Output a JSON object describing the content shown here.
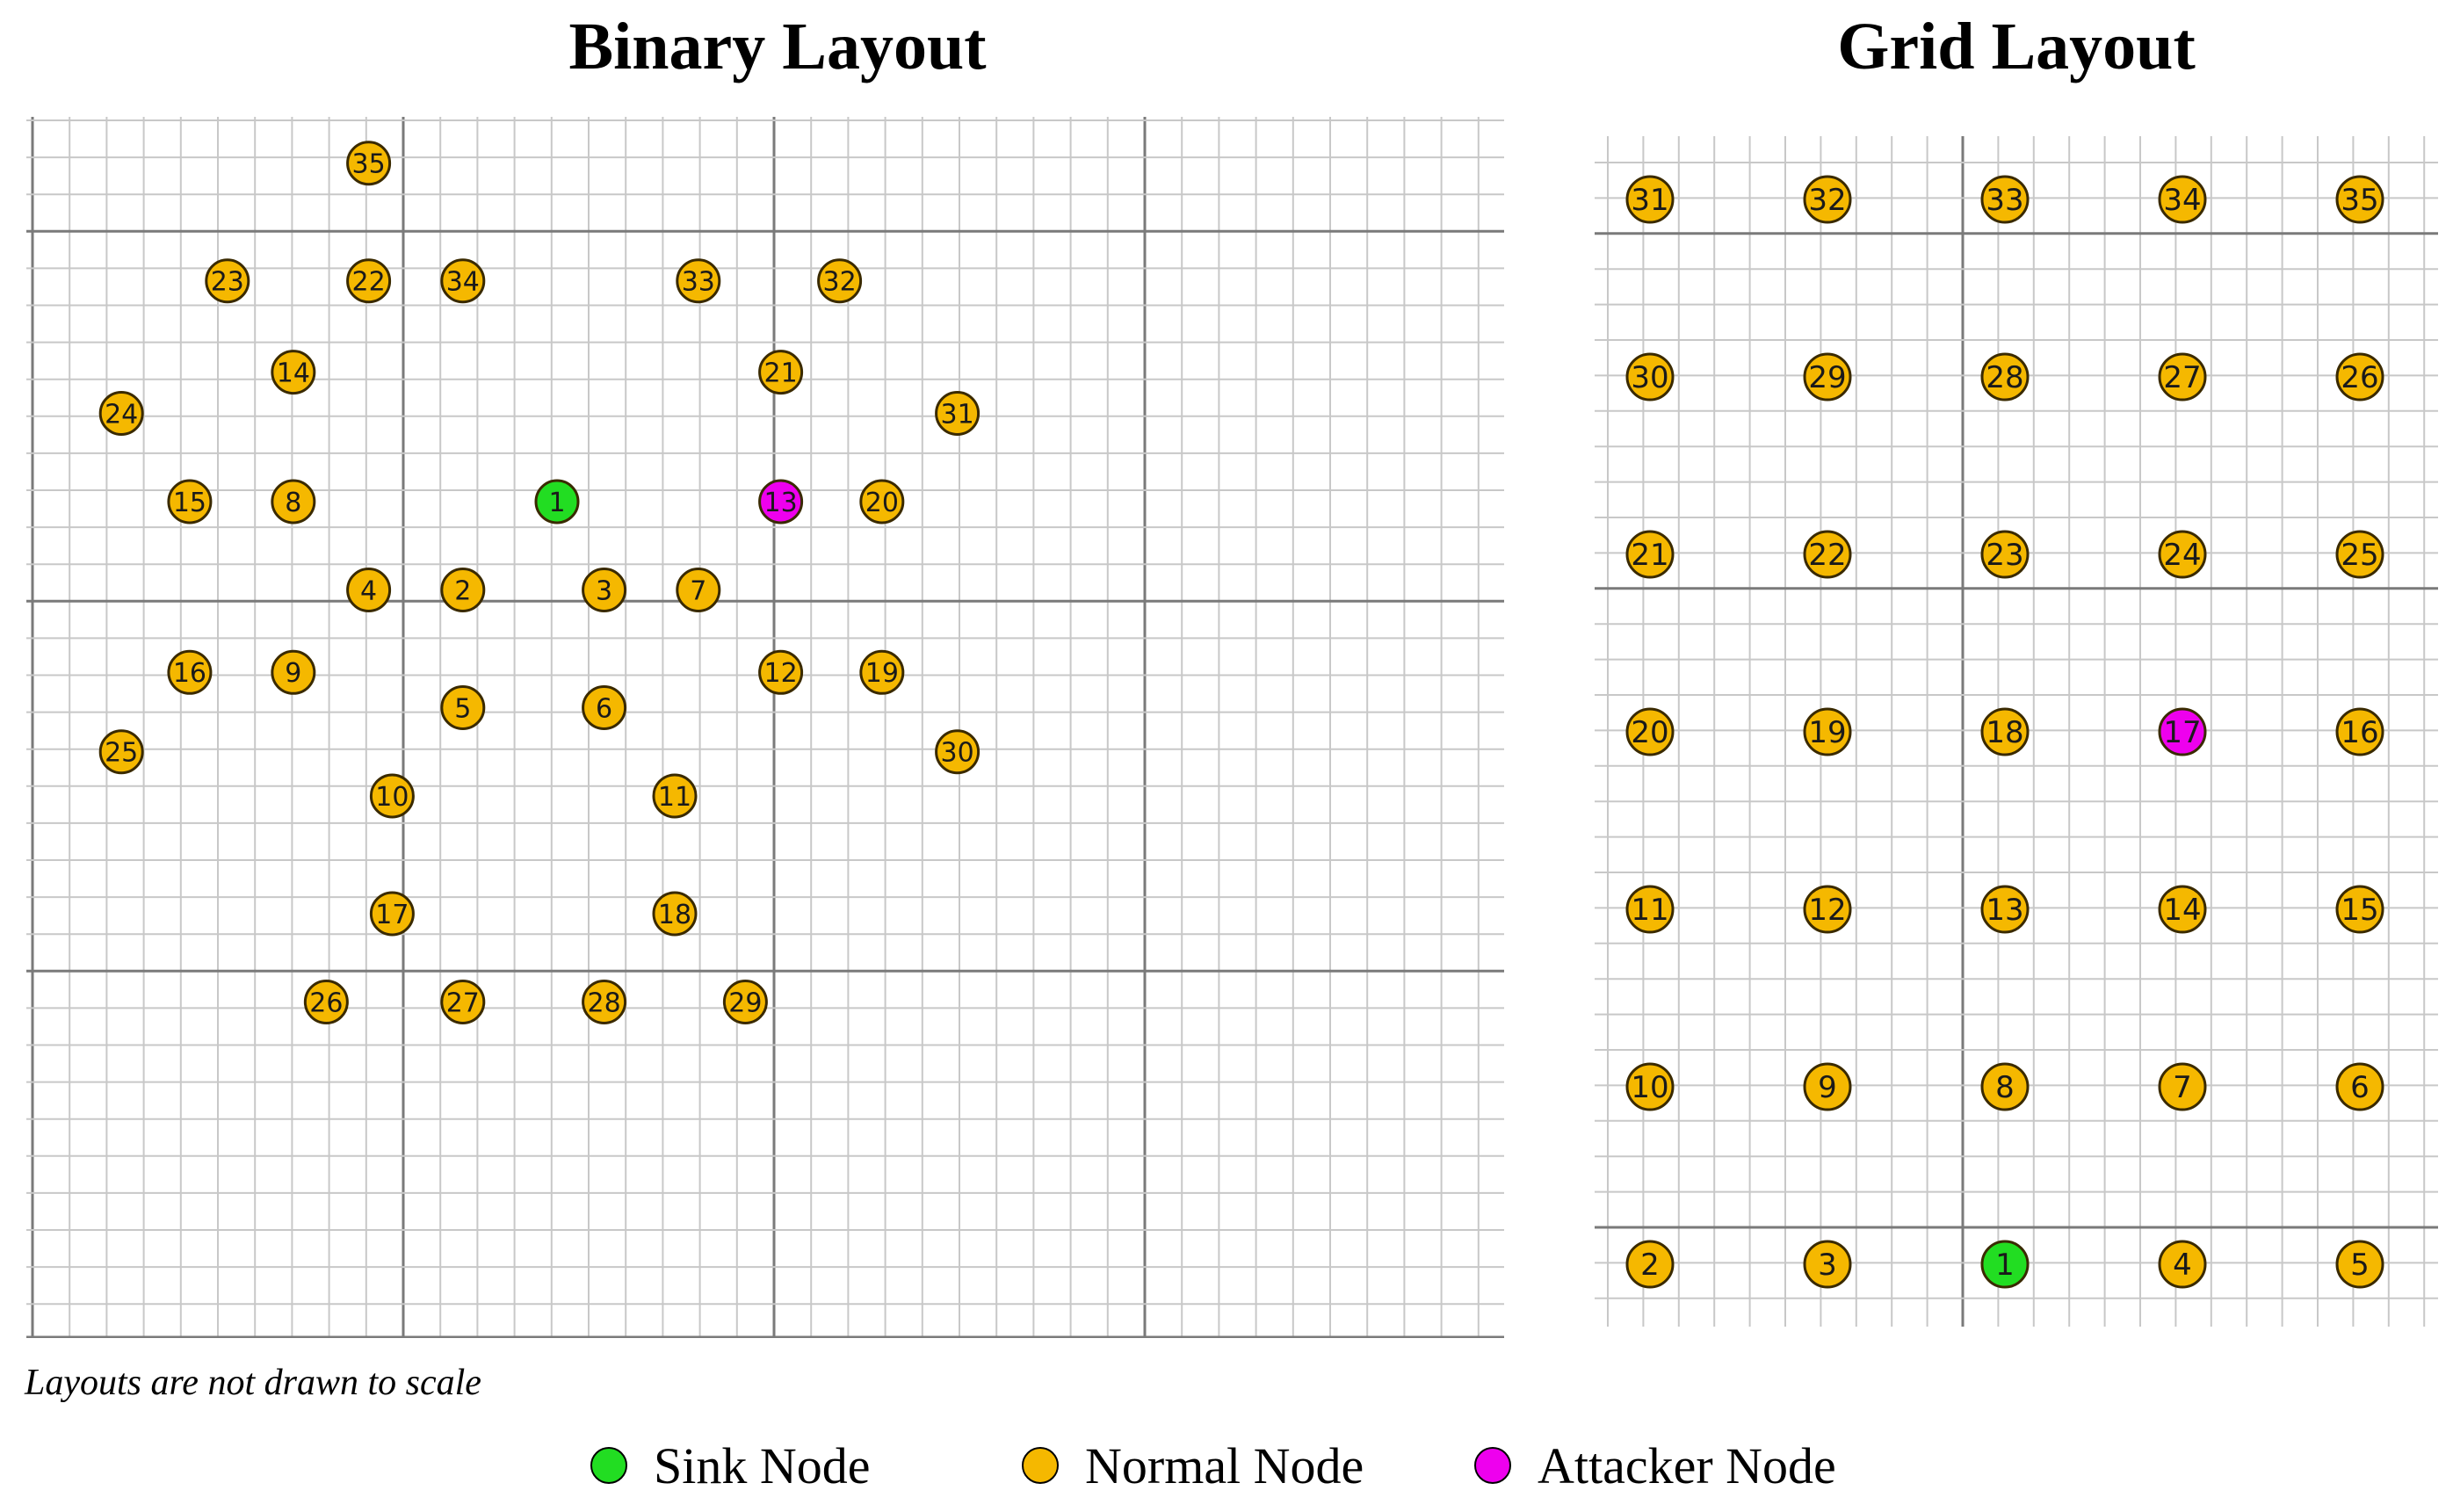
{
  "titles": {
    "binary": "Binary Layout",
    "grid": "Grid Layout"
  },
  "note": "Layouts are not drawn to scale",
  "colors": {
    "sink": "#22dd22",
    "normal": "#f5b800",
    "attacker": "#ee00ee",
    "minor_grid": "#c8c8c8",
    "major_grid": "#7a7a7a",
    "node_border": "#3a2a00"
  },
  "legend": [
    {
      "label": "Sink Node",
      "role": "sink"
    },
    {
      "label": "Normal Node",
      "role": "normal"
    },
    {
      "label": "Attacker Node",
      "role": "attacker"
    }
  ],
  "binary_layout": {
    "nodes": [
      {
        "id": "1",
        "col": 20,
        "row": 12,
        "role": "sink"
      },
      {
        "id": "2",
        "col": 16,
        "row": 15
      },
      {
        "id": "3",
        "col": 22,
        "row": 15
      },
      {
        "id": "4",
        "col": 12,
        "row": 15
      },
      {
        "id": "5",
        "col": 16,
        "row": 19
      },
      {
        "id": "6",
        "col": 22,
        "row": 19
      },
      {
        "id": "7",
        "col": 26,
        "row": 15
      },
      {
        "id": "8",
        "col": 8.8,
        "row": 12
      },
      {
        "id": "9",
        "col": 8.8,
        "row": 17.8
      },
      {
        "id": "10",
        "col": 13,
        "row": 22
      },
      {
        "id": "11",
        "col": 25,
        "row": 22
      },
      {
        "id": "12",
        "col": 29.5,
        "row": 17.8
      },
      {
        "id": "13",
        "col": 29.5,
        "row": 12,
        "role": "attacker"
      },
      {
        "id": "14",
        "col": 8.8,
        "row": 7.6
      },
      {
        "id": "15",
        "col": 4.4,
        "row": 12
      },
      {
        "id": "16",
        "col": 4.4,
        "row": 17.8
      },
      {
        "id": "17",
        "col": 13,
        "row": 26
      },
      {
        "id": "18",
        "col": 25,
        "row": 26
      },
      {
        "id": "19",
        "col": 33.8,
        "row": 17.8
      },
      {
        "id": "20",
        "col": 33.8,
        "row": 12
      },
      {
        "id": "21",
        "col": 29.5,
        "row": 7.6
      },
      {
        "id": "22",
        "col": 12,
        "row": 4.5
      },
      {
        "id": "23",
        "col": 6,
        "row": 4.5
      },
      {
        "id": "24",
        "col": 1.5,
        "row": 9
      },
      {
        "id": "25",
        "col": 1.5,
        "row": 20.5
      },
      {
        "id": "26",
        "col": 10.2,
        "row": 29
      },
      {
        "id": "27",
        "col": 16,
        "row": 29
      },
      {
        "id": "28",
        "col": 22,
        "row": 29
      },
      {
        "id": "29",
        "col": 28,
        "row": 29
      },
      {
        "id": "30",
        "col": 37,
        "row": 20.5
      },
      {
        "id": "31",
        "col": 37,
        "row": 9
      },
      {
        "id": "32",
        "col": 32,
        "row": 4.5
      },
      {
        "id": "33",
        "col": 26,
        "row": 4.5
      },
      {
        "id": "34",
        "col": 16,
        "row": 4.5
      },
      {
        "id": "35",
        "col": 12,
        "row": 0.5
      }
    ]
  },
  "grid_layout": {
    "rows": [
      [
        "31",
        "32",
        "33",
        "34",
        "35"
      ],
      [
        "30",
        "29",
        "28",
        "27",
        "26"
      ],
      [
        "21",
        "22",
        "23",
        "24",
        "25"
      ],
      [
        "20",
        "19",
        "18",
        "17",
        "16"
      ],
      [
        "11",
        "12",
        "13",
        "14",
        "15"
      ],
      [
        "10",
        "9",
        "8",
        "7",
        "6"
      ],
      [
        "2",
        "3",
        "1",
        "4",
        "5"
      ]
    ],
    "sink": "1",
    "attacker": "17"
  }
}
